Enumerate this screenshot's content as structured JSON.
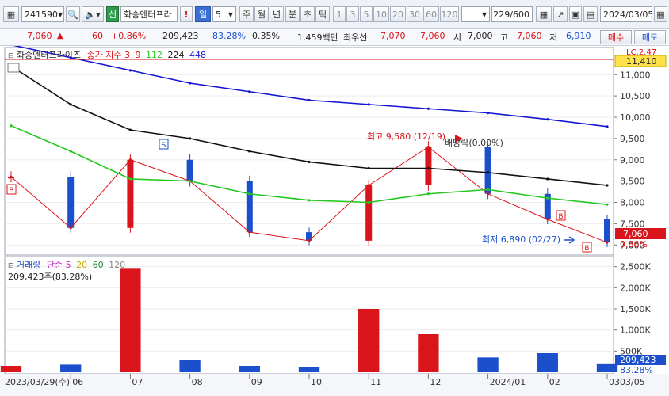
{
  "toolbar": {
    "code": "241590",
    "badge": "신",
    "name": "화승엔터프라",
    "alert": "!",
    "period_active": "일",
    "period_num": "5",
    "periods": [
      "주",
      "월",
      "년",
      "분",
      "초",
      "틱"
    ],
    "intervals": [
      "1",
      "3",
      "5",
      "10",
      "20",
      "30",
      "60",
      "120"
    ],
    "count": "229/600",
    "date": "2024/03/05"
  },
  "price": {
    "current": "7,060",
    "change": "60",
    "change_pct": "+0.86%",
    "volume": "209,423",
    "vol_ratio": "83.28%",
    "turnover": "0.35%",
    "amount": "1,459백만",
    "priority_label": "최우선",
    "ask": "7,070",
    "bid": "7,060",
    "open_label": "시",
    "open": "7,000",
    "high_label": "고",
    "high": "7,060",
    "low_label": "저",
    "low": "6,910",
    "buy_button": "매수",
    "sell_button": "매도"
  },
  "main_legend": {
    "name": "화승엔터프라이즈",
    "ma_label": "종가 지수",
    "ma_periods": [
      "3",
      "9",
      "112",
      "224",
      "448"
    ]
  },
  "annotations": {
    "high_text": "최고 9,580 (12/19)",
    "low_text": "최저 6,890 (02/27)",
    "ratio_text": "배당락(0.00%)",
    "lc_label": "LC:2.47",
    "top_price": "11,410",
    "current_price": "7,060",
    "current_pct": "0.86%",
    "marker_s": "S",
    "marker_b": "B"
  },
  "volume_legend": {
    "title": "거래량",
    "ma_label": "단순",
    "ma_periods": [
      "5",
      "20",
      "60",
      "120"
    ],
    "value_text": "209,423주(83.28%)",
    "current_volume": "209,423",
    "current_pct": "83.28%"
  },
  "price_axis": [
    "11,000",
    "10,500",
    "10,000",
    "9,500",
    "9,000",
    "8,500",
    "8,000",
    "7,500",
    "7,000"
  ],
  "volume_axis": [
    "2,500K",
    "2,000K",
    "1,500K",
    "1,000K",
    "500K"
  ],
  "date_axis": {
    "start_label": "2023/03/29(수)",
    "months": [
      "06",
      "07",
      "08",
      "09",
      "10",
      "11",
      "12",
      "2024/01",
      "02",
      "03"
    ],
    "end_label": "03/05"
  },
  "colors": {
    "up": "#d9141a",
    "down": "#1b4fcc",
    "ma3": "#d9141a",
    "ma112": "#22c81e",
    "ma224": "#111111",
    "ma448": "#1515d0"
  },
  "chart_data": [
    {
      "type": "line",
      "title": "화승엔터프라이즈",
      "x": [
        "2023/03/29",
        "2023/06",
        "2023/07",
        "2023/08",
        "2023/09",
        "2023/10",
        "2023/11",
        "2023/12",
        "2024/01",
        "2024/02",
        "2024/03/05"
      ],
      "series": [
        {
          "name": "종가",
          "values": [
            8600,
            7400,
            9000,
            8500,
            7300,
            7100,
            8400,
            9300,
            8200,
            7600,
            7060
          ]
        },
        {
          "name": "112",
          "values": [
            9800,
            9200,
            8550,
            8500,
            8200,
            8050,
            8000,
            8200,
            8300,
            8100,
            7950
          ]
        },
        {
          "name": "224",
          "values": [
            11200,
            10300,
            9700,
            9500,
            9200,
            8950,
            8800,
            8800,
            8700,
            8550,
            8400
          ]
        },
        {
          "name": "448",
          "values": [
            11700,
            11400,
            11100,
            10800,
            10600,
            10400,
            10300,
            10200,
            10100,
            9950,
            9780
          ]
        }
      ],
      "ylim": [
        6800,
        11600
      ],
      "annotations": [
        "최고 9,580 (12/19)",
        "최저 6,890 (02/27)"
      ]
    },
    {
      "type": "bar",
      "title": "거래량",
      "x": [
        "2023/03/29",
        "2023/06",
        "2023/07",
        "2023/08",
        "2023/09",
        "2023/10",
        "2023/11",
        "2023/12",
        "2024/01",
        "2024/02",
        "2024/03/05"
      ],
      "values": [
        150000,
        180000,
        2450000,
        300000,
        150000,
        120000,
        1500000,
        900000,
        350000,
        450000,
        209423
      ],
      "ylim": [
        0,
        2700000
      ]
    }
  ]
}
